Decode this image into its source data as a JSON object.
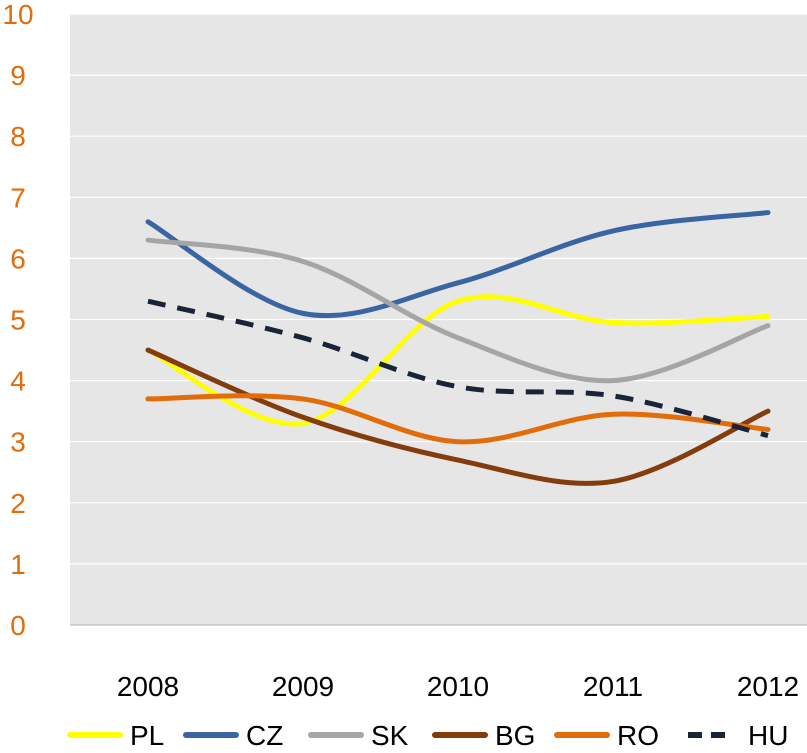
{
  "chart_data": {
    "type": "line",
    "title": "",
    "xlabel": "",
    "ylabel": "",
    "categories": [
      "2008",
      "2009",
      "2010",
      "2011",
      "2012"
    ],
    "ylim": [
      0,
      10
    ],
    "yticks": [
      "0",
      "1",
      "2",
      "3",
      "4",
      "5",
      "6",
      "7",
      "8",
      "9",
      "10"
    ],
    "grid": true,
    "legend": "bottom",
    "series": [
      {
        "name": "PL",
        "color": "#ffff00",
        "dash": false,
        "values": [
          4.5,
          3.3,
          5.3,
          4.95,
          5.05
        ]
      },
      {
        "name": "CZ",
        "color": "#3a64a2",
        "dash": false,
        "values": [
          6.6,
          5.1,
          5.6,
          6.45,
          6.75
        ]
      },
      {
        "name": "SK",
        "color": "#a5a5a5",
        "dash": false,
        "values": [
          6.3,
          5.95,
          4.7,
          4.0,
          4.9
        ]
      },
      {
        "name": "BG",
        "color": "#843c0c",
        "dash": false,
        "values": [
          4.5,
          3.4,
          2.7,
          2.35,
          3.5
        ]
      },
      {
        "name": "RO",
        "color": "#e36c0a",
        "dash": false,
        "values": [
          3.7,
          3.7,
          3.0,
          3.45,
          3.2
        ]
      },
      {
        "name": "HU",
        "color": "#1a2438",
        "dash": true,
        "values": [
          5.3,
          4.7,
          3.9,
          3.75,
          3.1
        ]
      }
    ],
    "colors": {
      "plot_background": "#e6e6e6",
      "gridline": "#ffffff",
      "ytick_label": "#e36c0a",
      "xtick_label": "#000000"
    }
  }
}
